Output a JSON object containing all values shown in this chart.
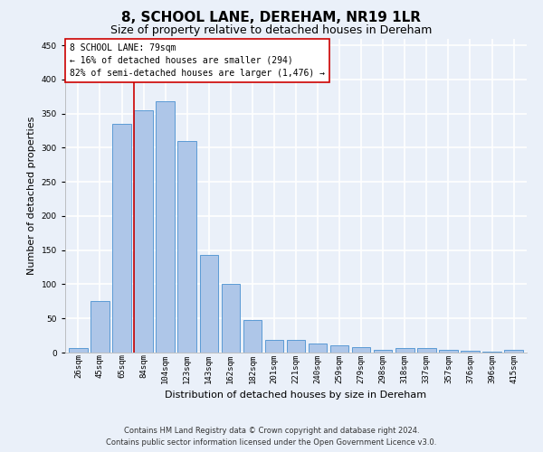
{
  "title": "8, SCHOOL LANE, DEREHAM, NR19 1LR",
  "subtitle": "Size of property relative to detached houses in Dereham",
  "xlabel": "Distribution of detached houses by size in Dereham",
  "ylabel": "Number of detached properties",
  "categories": [
    "26sqm",
    "45sqm",
    "65sqm",
    "84sqm",
    "104sqm",
    "123sqm",
    "143sqm",
    "162sqm",
    "182sqm",
    "201sqm",
    "221sqm",
    "240sqm",
    "259sqm",
    "279sqm",
    "298sqm",
    "318sqm",
    "337sqm",
    "357sqm",
    "376sqm",
    "396sqm",
    "415sqm"
  ],
  "values": [
    7,
    75,
    335,
    355,
    368,
    310,
    143,
    100,
    47,
    18,
    18,
    13,
    10,
    8,
    4,
    6,
    6,
    4,
    2,
    1,
    4
  ],
  "bar_color": "#aec6e8",
  "bar_edge_color": "#5b9bd5",
  "background_color": "#eaf0f9",
  "grid_color": "#ffffff",
  "vline_color": "#cc0000",
  "annotation_line1": "8 SCHOOL LANE: 79sqm",
  "annotation_line2": "← 16% of detached houses are smaller (294)",
  "annotation_line3": "82% of semi-detached houses are larger (1,476) →",
  "annotation_box_facecolor": "#ffffff",
  "annotation_box_edgecolor": "#cc0000",
  "footer_line1": "Contains HM Land Registry data © Crown copyright and database right 2024.",
  "footer_line2": "Contains public sector information licensed under the Open Government Licence v3.0.",
  "ylim": [
    0,
    460
  ],
  "yticks": [
    0,
    50,
    100,
    150,
    200,
    250,
    300,
    350,
    400,
    450
  ],
  "title_fontsize": 11,
  "subtitle_fontsize": 9,
  "xlabel_fontsize": 8,
  "ylabel_fontsize": 8,
  "tick_fontsize": 6.5,
  "annotation_fontsize": 7,
  "footer_fontsize": 6,
  "vline_xindex": 2.57
}
